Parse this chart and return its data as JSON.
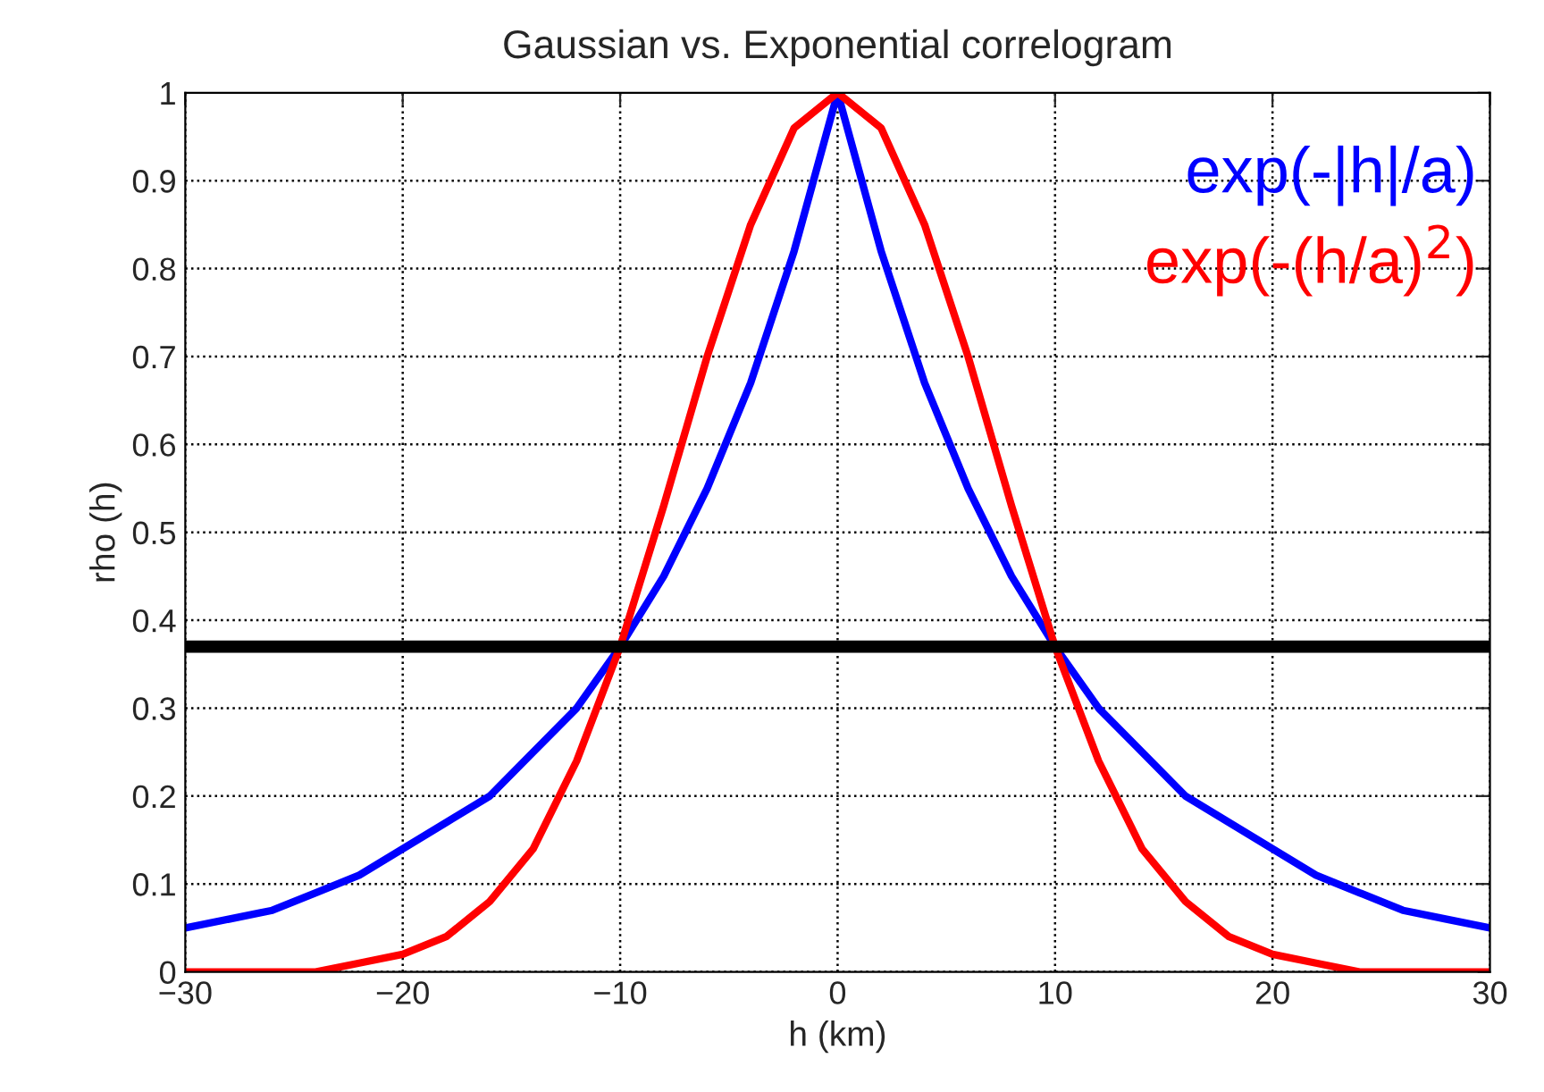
{
  "chart_data": {
    "type": "line",
    "title": "Gaussian vs. Exponential correlogram",
    "xlabel": "h (km)",
    "ylabel": "rho (h)",
    "x": [
      -30,
      -28,
      -26,
      -24,
      -22,
      -20,
      -18,
      -16,
      -14,
      -12,
      -10,
      -8,
      -6,
      -4,
      -2,
      0,
      2,
      4,
      6,
      8,
      10,
      12,
      14,
      16,
      18,
      20,
      22,
      24,
      26,
      28,
      30
    ],
    "series": [
      {
        "name": "exp(-|h|/a)",
        "color": "#0000ff",
        "values": [
          0.05,
          0.06,
          0.07,
          0.09,
          0.11,
          0.14,
          0.17,
          0.2,
          0.25,
          0.3,
          0.37,
          0.45,
          0.55,
          0.67,
          0.82,
          1,
          0.82,
          0.67,
          0.55,
          0.45,
          0.37,
          0.3,
          0.25,
          0.2,
          0.17,
          0.14,
          0.11,
          0.09,
          0.07,
          0.06,
          0.05
        ]
      },
      {
        "name": "exp(-(h/a)$^{2}$)",
        "color": "#ff0000",
        "values": [
          0,
          0,
          0,
          0,
          0.01,
          0.02,
          0.04,
          0.08,
          0.14,
          0.24,
          0.37,
          0.53,
          0.7,
          0.85,
          0.96,
          1,
          0.96,
          0.85,
          0.7,
          0.53,
          0.37,
          0.24,
          0.14,
          0.08,
          0.04,
          0.02,
          0.01,
          0,
          0,
          0,
          0
        ]
      }
    ],
    "ref_lines": [
      {
        "axis": "y",
        "value": 0.37,
        "color": "#000000"
      }
    ],
    "xlim": [
      -30,
      30
    ],
    "xticks": [
      {
        "value": -30,
        "label": "−30"
      },
      {
        "value": -20,
        "label": "−20"
      },
      {
        "value": -10,
        "label": "−10"
      },
      0,
      10,
      20,
      30
    ],
    "ylim": [
      0,
      1
    ],
    "yticks": [
      0,
      0.1,
      0.2,
      0.3,
      0.4,
      0.5,
      0.6,
      0.7,
      0.8,
      0.9,
      1
    ],
    "grid": true,
    "legend": "top right",
    "marker": "none",
    "line_style": "solid"
  }
}
